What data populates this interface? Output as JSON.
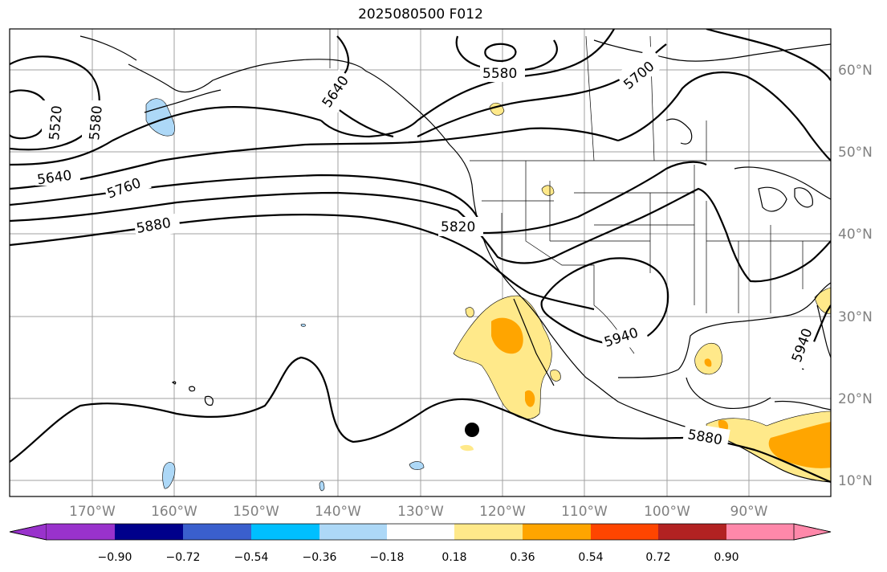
{
  "title": "2025080500 F012",
  "colors": {
    "neg_090": "#9932cc",
    "neg_072": "#00008b",
    "neg_054": "#3a5fcd",
    "neg_036": "#00bfff",
    "neg_018": "#add8f7",
    "neutral": "#ffffff",
    "pos_018": "#ffe98a",
    "pos_036": "#ffa500",
    "pos_054": "#ff4500",
    "pos_072": "#b22222",
    "pos_090": "#ff88aa"
  },
  "lat_labels": [
    "60°N",
    "50°N",
    "40°N",
    "30°N",
    "20°N",
    "10°N"
  ],
  "lon_labels": [
    "170°W",
    "160°W",
    "150°W",
    "140°W",
    "130°W",
    "120°W",
    "110°W",
    "100°W",
    "90°W"
  ],
  "contour_labels": [
    "5520",
    "5580",
    "5640",
    "5580",
    "5700",
    "5640",
    "5760",
    "5880",
    "5820",
    "5940",
    "5940",
    "5880"
  ],
  "colorbar": {
    "ticks": [
      "−0.90",
      "−0.72",
      "−0.54",
      "−0.36",
      "−0.18",
      "0.18",
      "0.36",
      "0.54",
      "0.72",
      "0.90"
    ]
  },
  "marker": "storm-center-dot"
}
